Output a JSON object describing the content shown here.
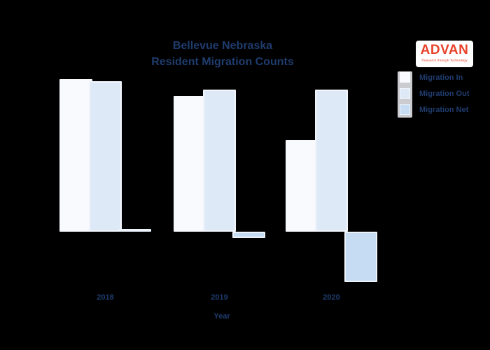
{
  "app": {
    "background_color": "#000000",
    "text_color": "#1f3c6e"
  },
  "header": {
    "title_line1": "Bellevue Nebraska",
    "title_line2": "Resident Migration Counts"
  },
  "logo": {
    "name": "ADVAN",
    "tagline": "Research through Technology",
    "text_color": "#e8432a",
    "background": "#ffffff"
  },
  "legend": {
    "items": [
      {
        "label": "Migration In",
        "color": "#f8fafe"
      },
      {
        "label": "Migration Out",
        "color": "#dee9f8"
      },
      {
        "label": "Migration Net",
        "color": "#c5dcf2"
      }
    ]
  },
  "x_axis": {
    "label": "Year"
  },
  "chart_data": {
    "type": "bar",
    "title": "Bellevue Nebraska Resident Migration Counts",
    "categories": [
      "2018",
      "2019",
      "2020"
    ],
    "series": [
      {
        "name": "Migration In",
        "color": "#f8fafe",
        "values": [
          2180,
          1940,
          1310
        ]
      },
      {
        "name": "Migration Out",
        "color": "#dee9f8",
        "values": [
          2150,
          2030,
          2030
        ]
      },
      {
        "name": "Migration Net",
        "color": "#c5dcf2",
        "values": [
          30,
          -90,
          -720
        ]
      }
    ],
    "xlabel": "Year",
    "ylabel": "",
    "y_axis_labeled": false,
    "units": "people (estimated; y-axis unlabeled in image)",
    "ylim": [
      -800,
      2300
    ],
    "grid": false,
    "background": "transparent (renders black)",
    "legend_position": "upper right"
  }
}
